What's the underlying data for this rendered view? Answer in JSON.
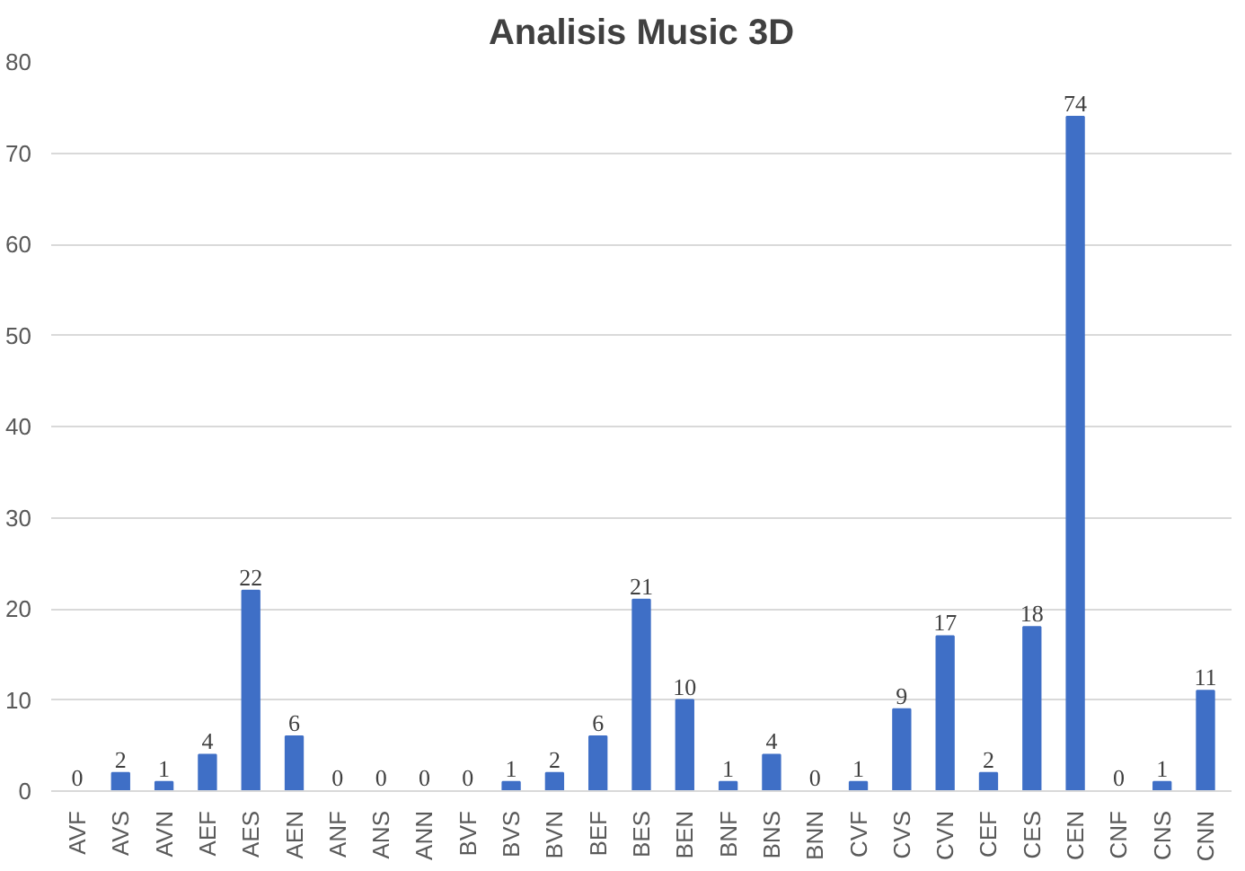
{
  "chart_data": {
    "type": "bar",
    "title": "Analisis Music 3D",
    "categories": [
      "AVF",
      "AVS",
      "AVN",
      "AEF",
      "AES",
      "AEN",
      "ANF",
      "ANS",
      "ANN",
      "BVF",
      "BVS",
      "BVN",
      "BEF",
      "BES",
      "BEN",
      "BNF",
      "BNS",
      "BNN",
      "CVF",
      "CVS",
      "CVN",
      "CEF",
      "CES",
      "CEN",
      "CNF",
      "CNS",
      "CNN"
    ],
    "values": [
      0,
      2,
      1,
      4,
      22,
      6,
      0,
      0,
      0,
      0,
      1,
      2,
      6,
      21,
      10,
      1,
      4,
      0,
      1,
      9,
      17,
      2,
      18,
      74,
      0,
      1,
      11
    ],
    "color": "#3f6fc6",
    "ylim": [
      0,
      80
    ],
    "yticks": [
      0,
      10,
      20,
      30,
      40,
      50,
      60,
      70,
      80
    ],
    "grid": "y",
    "data_labels": true
  }
}
